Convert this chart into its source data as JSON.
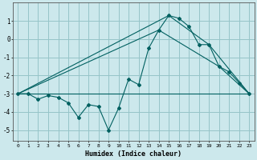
{
  "xlabel": "Humidex (Indice chaleur)",
  "bg_color": "#cce8ec",
  "grid_color": "#96c4c8",
  "line_color": "#006060",
  "xlim": [
    -0.5,
    23.5
  ],
  "ylim": [
    -5.6,
    2.0
  ],
  "yticks": [
    -5,
    -4,
    -3,
    -2,
    -1,
    0,
    1
  ],
  "xticks": [
    0,
    1,
    2,
    3,
    4,
    5,
    6,
    7,
    8,
    9,
    10,
    11,
    12,
    13,
    14,
    15,
    16,
    17,
    18,
    19,
    20,
    21,
    22,
    23
  ],
  "main_line": {
    "x": [
      0,
      1,
      2,
      3,
      4,
      5,
      6,
      7,
      8,
      9,
      10,
      11,
      12,
      13,
      14,
      15,
      16,
      17,
      18,
      19,
      20,
      21,
      22,
      23
    ],
    "y": [
      -3.0,
      -3.0,
      -3.3,
      -3.1,
      -3.2,
      -3.5,
      -4.3,
      -3.6,
      -3.7,
      -5.0,
      -3.8,
      -2.2,
      -2.5,
      -0.5,
      0.5,
      1.3,
      1.15,
      0.7,
      -0.3,
      -0.3,
      -1.5,
      -1.8,
      -2.4,
      -3.0
    ]
  },
  "extra_lines": [
    {
      "x": [
        0,
        23
      ],
      "y": [
        -3.0,
        -3.0
      ]
    },
    {
      "x": [
        0,
        15,
        19,
        23
      ],
      "y": [
        -3.0,
        1.3,
        -0.3,
        -3.0
      ]
    },
    {
      "x": [
        0,
        14,
        20,
        23
      ],
      "y": [
        -3.0,
        0.5,
        -1.5,
        -3.0
      ]
    }
  ]
}
